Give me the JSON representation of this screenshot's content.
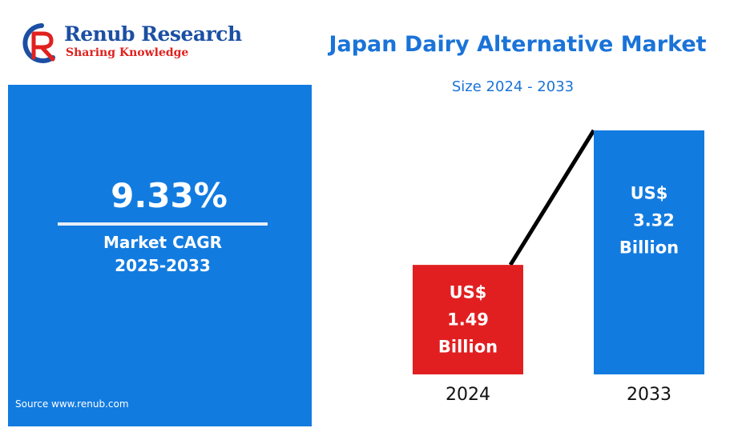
{
  "brand": {
    "name": "Renub Research",
    "tagline": "Sharing Knowledge",
    "colors": {
      "blue": "#1c4fa3",
      "red": "#e0211f"
    }
  },
  "header": {
    "title": "Japan Dairy Alternative Market",
    "subtitle": "Size 2024 - 2033"
  },
  "cagr_panel": {
    "value": "9.33%",
    "label_line1": "Market CAGR",
    "label_line2": "2025-2033",
    "source": "Source  www.renub.com",
    "background": "#127be0"
  },
  "chart_data": {
    "type": "bar",
    "title": "Japan Dairy Alternative Market",
    "subtitle": "Size 2024 - 2033",
    "categories": [
      "2024",
      "2033"
    ],
    "values": [
      1.49,
      3.32
    ],
    "unit": "US$ Billion",
    "bar_labels": [
      [
        "US$",
        "1.49",
        "Billion"
      ],
      [
        "US$",
        "3.32",
        "Billion"
      ]
    ],
    "colors": [
      "#e11f21",
      "#127be0"
    ],
    "ylim": [
      0,
      3.32
    ],
    "grid": false,
    "legend": "none",
    "trend_line": true
  }
}
